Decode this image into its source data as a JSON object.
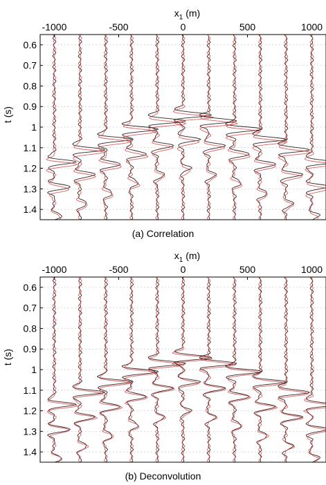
{
  "chart_data": [
    {
      "type": "line",
      "caption": "(a) Correlation",
      "xlabel": "x",
      "xlabel_sub": "1",
      "xlabel_unit": " (m)",
      "ylabel": "t (s)",
      "xlim": [
        -1110,
        1110
      ],
      "ylim": [
        1.45,
        0.55
      ],
      "xticks": [
        -1000,
        -500,
        0,
        500,
        1000
      ],
      "xtick_labels": [
        "-1000",
        "-500",
        "0",
        "500",
        "1000"
      ],
      "yticks": [
        0.6,
        0.7,
        0.8,
        0.9,
        1.0,
        1.1,
        1.2,
        1.3,
        1.4
      ],
      "ytick_labels": [
        "0.6",
        "0.7",
        "0.8",
        "0.9",
        "1",
        "1.1",
        "1.2",
        "1.3",
        "1.4"
      ],
      "grid": true,
      "x_axis_position": "top",
      "trace_offsets": [
        -1000,
        -800,
        -600,
        -400,
        -200,
        0,
        200,
        400,
        600,
        800,
        1000
      ],
      "arrival_times": [
        1.17,
        1.11,
        1.06,
        1.01,
        0.97,
        0.94,
        0.97,
        1.01,
        1.06,
        1.11,
        1.17
      ],
      "series": [
        {
          "style": "black solid",
          "color": "#000000"
        },
        {
          "style": "red",
          "color": "#e03030"
        }
      ]
    },
    {
      "type": "line",
      "caption": "(b) Deconvolution",
      "xlabel": "x",
      "xlabel_sub": "1",
      "xlabel_unit": " (m)",
      "ylabel": "t (s)",
      "xlim": [
        -1110,
        1110
      ],
      "ylim": [
        1.45,
        0.55
      ],
      "xticks": [
        -1000,
        -500,
        0,
        500,
        1000
      ],
      "xtick_labels": [
        "-1000",
        "-500",
        "0",
        "500",
        "1000"
      ],
      "yticks": [
        0.6,
        0.7,
        0.8,
        0.9,
        1.0,
        1.1,
        1.2,
        1.3,
        1.4
      ],
      "ytick_labels": [
        "0.6",
        "0.7",
        "0.8",
        "0.9",
        "1",
        "1.1",
        "1.2",
        "1.3",
        "1.4"
      ],
      "grid": true,
      "x_axis_position": "top",
      "trace_offsets": [
        -1000,
        -800,
        -600,
        -400,
        -200,
        0,
        200,
        400,
        600,
        800,
        1000
      ],
      "arrival_times": [
        1.17,
        1.11,
        1.06,
        1.01,
        0.97,
        0.94,
        0.97,
        1.01,
        1.06,
        1.11,
        1.17
      ],
      "series": [
        {
          "style": "black solid",
          "color": "#000000"
        },
        {
          "style": "red",
          "color": "#e03030"
        }
      ]
    }
  ]
}
